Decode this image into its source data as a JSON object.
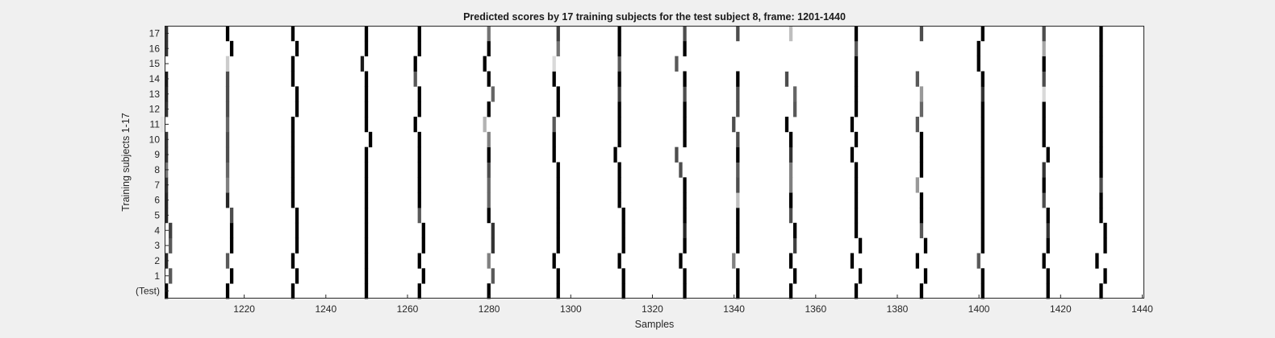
{
  "chart_data": {
    "type": "heatmap",
    "title": "Predicted scores by 17 training subjects for the test subject 8, frame: 1201-1440",
    "xlabel": "Samples",
    "ylabel": "Training subjects 1-17",
    "xlim": [
      1201,
      1440
    ],
    "x_ticks": [
      1220,
      1240,
      1260,
      1280,
      1300,
      1320,
      1340,
      1360,
      1380,
      1400,
      1420,
      1440
    ],
    "y_tick_labels": [
      "(Test)",
      "1",
      "2",
      "3",
      "4",
      "5",
      "6",
      "7",
      "8",
      "9",
      "10",
      "11",
      "12",
      "13",
      "14",
      "15",
      "16",
      "17"
    ],
    "background_color": "#ffffff",
    "colormap": "gray (0 = black, 1 = white)",
    "grid": false,
    "legend": "none",
    "event_columns": [
      1201,
      1216,
      1232,
      1250,
      1263,
      1280,
      1297,
      1313,
      1328,
      1341,
      1354,
      1370,
      1386,
      1401,
      1417,
      1430
    ],
    "series": [
      {
        "label": "(Test)",
        "x": [
          1201,
          1216,
          1232,
          1250,
          1263,
          1280,
          1297,
          1313,
          1328,
          1341,
          1354,
          1370,
          1386,
          1401,
          1417,
          1430
        ],
        "v": [
          0,
          0,
          0,
          0,
          0,
          0,
          0,
          0,
          0,
          0,
          0,
          0,
          0,
          0,
          0,
          0
        ]
      },
      {
        "label": "1",
        "x": [
          1202,
          1217,
          1233,
          1250,
          1264,
          1281,
          1297,
          1313,
          1328,
          1341,
          1355,
          1371,
          1387,
          1401,
          1417,
          1431
        ],
        "v": [
          0.35,
          0,
          0,
          0,
          0,
          0.35,
          0,
          0,
          0,
          0,
          0,
          0,
          0,
          0,
          0,
          0
        ]
      },
      {
        "label": "2",
        "x": [
          1201,
          1216,
          1232,
          1250,
          1263,
          1280,
          1296,
          1312,
          1327,
          1340,
          1354,
          1369,
          1385,
          1400,
          1416,
          1429
        ],
        "v": [
          0.15,
          0.35,
          0,
          0,
          0,
          0.5,
          0,
          0,
          0,
          0.5,
          0,
          0,
          0,
          0.35,
          0,
          0
        ]
      },
      {
        "label": "3",
        "x": [
          1202,
          1217,
          1233,
          1250,
          1264,
          1281,
          1297,
          1313,
          1328,
          1341,
          1355,
          1371,
          1387,
          1401,
          1417,
          1431
        ],
        "v": [
          0.35,
          0,
          0,
          0,
          0,
          0.2,
          0,
          0,
          0,
          0,
          0.25,
          0,
          0,
          0,
          0,
          0
        ]
      },
      {
        "label": "4",
        "x": [
          1202,
          1217,
          1233,
          1250,
          1264,
          1281,
          1297,
          1313,
          1328,
          1341,
          1355,
          1370,
          1386,
          1401,
          1417,
          1431
        ],
        "v": [
          0.25,
          0,
          0,
          0,
          0,
          0.2,
          0,
          0,
          0.15,
          0,
          0,
          0,
          0.35,
          0,
          0.2,
          0
        ]
      },
      {
        "label": "5",
        "x": [
          1201,
          1217,
          1233,
          1250,
          1263,
          1280,
          1297,
          1313,
          1328,
          1341,
          1354,
          1370,
          1386,
          1401,
          1417,
          1430
        ],
        "v": [
          0.15,
          0.3,
          0,
          0,
          0.35,
          0,
          0,
          0,
          0,
          0,
          0.3,
          0,
          0,
          0,
          0,
          0
        ]
      },
      {
        "label": "6",
        "x": [
          1201,
          1216,
          1232,
          1250,
          1263,
          1280,
          1297,
          1312,
          1328,
          1341,
          1354,
          1370,
          1386,
          1401,
          1416,
          1430
        ],
        "v": [
          0.15,
          0.15,
          0,
          0,
          0,
          0.4,
          0,
          0,
          0,
          0.75,
          0,
          0,
          0,
          0,
          0.3,
          0
        ]
      },
      {
        "label": "7",
        "x": [
          1201,
          1216,
          1232,
          1250,
          1263,
          1280,
          1297,
          1312,
          1328,
          1341,
          1354,
          1370,
          1385,
          1401,
          1416,
          1430
        ],
        "v": [
          0.2,
          0.5,
          0,
          0,
          0,
          0.4,
          0,
          0,
          0,
          0.3,
          0.5,
          0,
          0.6,
          0,
          0,
          0.3
        ]
      },
      {
        "label": "8",
        "x": [
          1201,
          1216,
          1232,
          1250,
          1263,
          1280,
          1297,
          1312,
          1327,
          1341,
          1354,
          1370,
          1386,
          1401,
          1416,
          1430
        ],
        "v": [
          0.45,
          0.4,
          0,
          0,
          0,
          0.3,
          0,
          0,
          0.3,
          0.35,
          0.5,
          0,
          0,
          0,
          0.2,
          0
        ]
      },
      {
        "label": "9",
        "x": [
          1201,
          1216,
          1232,
          1250,
          1263,
          1280,
          1296,
          1311,
          1326,
          1341,
          1354,
          1369,
          1386,
          1401,
          1417,
          1430
        ],
        "v": [
          0.2,
          0.3,
          0,
          0,
          0,
          0,
          0,
          0,
          0.3,
          0,
          0.2,
          0,
          0,
          0,
          0,
          0
        ]
      },
      {
        "label": "10",
        "x": [
          1201,
          1216,
          1232,
          1251,
          1263,
          1280,
          1296,
          1312,
          1328,
          1341,
          1354,
          1370,
          1386,
          1401,
          1416,
          1430
        ],
        "v": [
          0.2,
          0.3,
          0,
          0,
          0,
          0.5,
          0,
          0,
          0,
          0.3,
          0,
          0,
          0,
          0,
          0,
          0
        ]
      },
      {
        "label": "11",
        "x": [
          1200,
          1216,
          1232,
          1250,
          1262,
          1279,
          1296,
          1312,
          1328,
          1340,
          1353,
          1369,
          1385,
          1401,
          1416,
          1430
        ],
        "v": [
          0.9,
          0.4,
          0,
          0,
          0,
          0.7,
          0.35,
          0,
          0,
          0.3,
          0,
          0,
          0.35,
          0,
          0,
          0
        ]
      },
      {
        "label": "12",
        "x": [
          1201,
          1216,
          1233,
          1250,
          1263,
          1280,
          1297,
          1312,
          1328,
          1341,
          1355,
          1370,
          1386,
          1401,
          1416,
          1430
        ],
        "v": [
          0.2,
          0.3,
          0,
          0,
          0,
          0,
          0,
          0,
          0,
          0.3,
          0.35,
          0,
          0.4,
          0,
          0,
          0
        ]
      },
      {
        "label": "13",
        "x": [
          1201,
          1216,
          1233,
          1250,
          1263,
          1281,
          1297,
          1312,
          1328,
          1341,
          1355,
          1370,
          1386,
          1401,
          1416,
          1430
        ],
        "v": [
          0.15,
          0.3,
          0,
          0,
          0,
          0.4,
          0,
          0.25,
          0.3,
          0.3,
          0.4,
          0,
          0.6,
          0.2,
          0.85,
          0
        ]
      },
      {
        "label": "14",
        "x": [
          1201,
          1216,
          1232,
          1250,
          1262,
          1280,
          1296,
          1312,
          1328,
          1341,
          1353,
          1370,
          1385,
          1401,
          1416,
          1430
        ],
        "v": [
          0.1,
          0.3,
          0,
          0,
          0.35,
          0,
          0,
          0,
          0,
          0,
          0.3,
          0,
          0.35,
          0,
          0.3,
          0
        ]
      },
      {
        "label": "15",
        "x": [
          1201,
          1216,
          1232,
          1249,
          1262,
          1279,
          1296,
          1312,
          1326,
          1340,
          1353,
          1370,
          1386,
          1400,
          1416,
          1430
        ],
        "v": [
          1,
          0.8,
          0,
          0.1,
          0,
          0,
          0.85,
          0.35,
          0.35,
          1,
          1,
          0,
          1,
          0,
          0,
          0
        ]
      },
      {
        "label": "16",
        "x": [
          1201,
          1217,
          1233,
          1250,
          1263,
          1280,
          1297,
          1312,
          1328,
          1341,
          1354,
          1370,
          1386,
          1400,
          1416,
          1430
        ],
        "v": [
          0.2,
          0,
          0,
          0,
          0,
          0,
          0.45,
          0,
          0,
          1,
          1,
          0.35,
          1,
          0,
          0.65,
          0
        ]
      },
      {
        "label": "17",
        "x": [
          1201,
          1216,
          1232,
          1250,
          1263,
          1280,
          1297,
          1312,
          1328,
          1341,
          1354,
          1370,
          1386,
          1401,
          1416,
          1430
        ],
        "v": [
          0.2,
          0,
          0,
          0,
          0,
          0.45,
          0.25,
          0,
          0.3,
          0.3,
          0.75,
          0,
          0.3,
          0,
          0.3,
          0
        ]
      }
    ]
  }
}
